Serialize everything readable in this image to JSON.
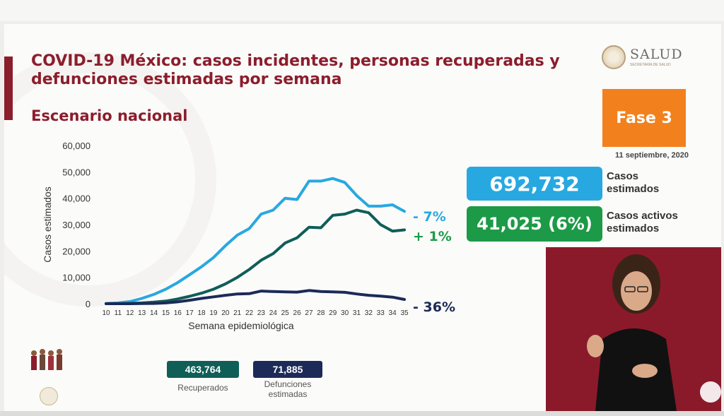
{
  "header": {
    "title": "COVID-19 México: casos incidentes, personas recuperadas y defunciones estimadas por semana",
    "subtitle": "Escenario nacional"
  },
  "logo": {
    "text": "SALUD",
    "subtext": "SECRETARÍA DE SALUD"
  },
  "phase": {
    "label": "Fase 3",
    "date": "11 septiembre, 2020"
  },
  "cards": [
    {
      "value": "692,732",
      "label_line1": "Casos",
      "label_line2": "estimados"
    },
    {
      "value": "41,025 (6%)",
      "label_line1": "Casos activos",
      "label_line2": "estimados"
    }
  ],
  "totals": [
    {
      "value": "463,764",
      "label": "Recuperados"
    },
    {
      "value": "71,885",
      "label_line1": "Defunciones",
      "label_line2": "estimadas"
    }
  ],
  "colors": {
    "brand": "#8b1e2c",
    "phase": "#f2811d",
    "cases": "#28a8e0",
    "recovered": "#1d9a47",
    "recovered_dark": "#0f5e58",
    "deaths": "#1c2a57"
  },
  "chart_data": {
    "type": "line",
    "xlabel": "Semana epidemiológica",
    "ylabel": "Casos estimados",
    "ylim": [
      0,
      60000
    ],
    "yticks": [
      0,
      10000,
      20000,
      30000,
      40000,
      50000,
      60000
    ],
    "ytick_labels": [
      "0",
      "10,000",
      "20,000",
      "30,000",
      "40,000",
      "50,000",
      "60,000"
    ],
    "x": [
      10,
      11,
      12,
      13,
      14,
      15,
      16,
      17,
      18,
      19,
      20,
      21,
      22,
      23,
      24,
      25,
      26,
      27,
      28,
      29,
      30,
      31,
      32,
      33,
      34,
      35
    ],
    "series": [
      {
        "key": "cases",
        "end_label": "- 7%",
        "color": "#28a8e0",
        "values": [
          100,
          300,
          800,
          2000,
          3500,
          5500,
          8000,
          11000,
          14000,
          17500,
          22000,
          26000,
          28500,
          34000,
          35500,
          40000,
          39500,
          46500,
          46500,
          47500,
          46000,
          41000,
          37000,
          37000,
          37500,
          35000
        ]
      },
      {
        "key": "recovered",
        "end_label": "+ 1%",
        "color": "#0f5e58",
        "values": [
          0,
          0,
          100,
          300,
          600,
          1000,
          1800,
          2800,
          4000,
          5500,
          7500,
          10000,
          13000,
          16500,
          19000,
          23000,
          25000,
          29000,
          28800,
          33500,
          34000,
          35500,
          34500,
          30000,
          27500,
          28000
        ]
      },
      {
        "key": "deaths",
        "end_label": "- 36%",
        "color": "#1c2a57",
        "values": [
          0,
          0,
          0,
          50,
          100,
          300,
          700,
          1300,
          2000,
          2600,
          3200,
          3700,
          3800,
          4800,
          4600,
          4500,
          4400,
          5000,
          4600,
          4500,
          4300,
          3700,
          3200,
          2900,
          2500,
          1600
        ]
      }
    ]
  }
}
